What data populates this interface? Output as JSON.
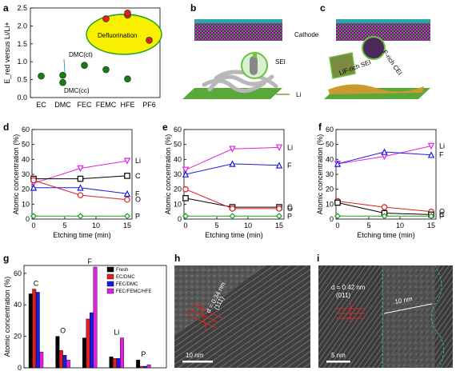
{
  "panel_labels": {
    "a": "a",
    "b": "b",
    "c": "c",
    "d": "d",
    "e": "e",
    "f": "f",
    "g": "g",
    "h": "h",
    "i": "i"
  },
  "chart_data": [
    {
      "id": "a",
      "type": "scatter",
      "ylabel": "E_red versus Li/Li+",
      "categories": [
        "EC",
        "DMC",
        "FEC",
        "FEMC",
        "HFE",
        "PF6"
      ],
      "ylim": [
        0,
        2.5
      ],
      "yticks": [
        "0.0",
        "0.5",
        "1.0",
        "1.5",
        "2.0",
        "2.5"
      ],
      "points": [
        {
          "x": "EC",
          "y": 0.6,
          "color": "#1a7a1a"
        },
        {
          "x": "DMC",
          "y": 0.62,
          "color": "#1a7a1a"
        },
        {
          "x": "DMC",
          "y": 0.42,
          "color": "#1a7a1a"
        },
        {
          "x": "FEC",
          "y": 0.9,
          "color": "#1a7a1a"
        },
        {
          "x": "FEMC",
          "y": 0.78,
          "color": "#1a7a1a"
        },
        {
          "x": "HFE",
          "y": 0.52,
          "color": "#1a7a1a"
        },
        {
          "x": "FEMC",
          "y": 2.2,
          "color": "#e0201c"
        },
        {
          "x": "HFE",
          "y": 2.3,
          "color": "#e0201c"
        },
        {
          "x": "HFE",
          "y": 2.36,
          "color": "#e0201c"
        },
        {
          "x": "PF6",
          "y": 1.6,
          "color": "#e0201c"
        }
      ],
      "annotations": [
        "DMC(ct)",
        "DMC(cc)",
        "Defluorination"
      ]
    },
    {
      "id": "d",
      "type": "line",
      "xlabel": "Etching time (min)",
      "ylabel": "Atomic concentration (%)",
      "x": [
        0,
        7.5,
        15
      ],
      "xticks": [
        "0",
        "5",
        "10",
        "15"
      ],
      "yticks": [
        "0",
        "10",
        "20",
        "30",
        "40",
        "50",
        "60"
      ],
      "ylim": [
        0,
        60
      ],
      "series": [
        {
          "name": "Li",
          "color": "#e020e0",
          "marker": "tri-down",
          "values": [
            24,
            34,
            39
          ]
        },
        {
          "name": "C",
          "color": "#000000",
          "marker": "square",
          "values": [
            27,
            27,
            29
          ]
        },
        {
          "name": "F",
          "color": "#1a1ae0",
          "marker": "triangle",
          "values": [
            21,
            21,
            17
          ]
        },
        {
          "name": "O",
          "color": "#e0201c",
          "marker": "circle",
          "values": [
            26,
            16,
            13
          ]
        },
        {
          "name": "P",
          "color": "#1aa01a",
          "marker": "diamond",
          "values": [
            2,
            2,
            2
          ]
        }
      ]
    },
    {
      "id": "e",
      "type": "line",
      "xlabel": "Etching time (min)",
      "ylabel": "Atomic concentration (%)",
      "x": [
        0,
        7.5,
        15
      ],
      "xticks": [
        "0",
        "5",
        "10",
        "15"
      ],
      "yticks": [
        "0",
        "10",
        "20",
        "30",
        "40",
        "50",
        "60"
      ],
      "ylim": [
        0,
        60
      ],
      "series": [
        {
          "name": "Li",
          "color": "#e020e0",
          "marker": "tri-down",
          "values": [
            33,
            47,
            48
          ]
        },
        {
          "name": "F",
          "color": "#1a1ae0",
          "marker": "triangle",
          "values": [
            30,
            37,
            36
          ]
        },
        {
          "name": "C",
          "color": "#000000",
          "marker": "square",
          "values": [
            14,
            8,
            8
          ]
        },
        {
          "name": "O",
          "color": "#e0201c",
          "marker": "circle",
          "values": [
            20,
            7,
            7
          ]
        },
        {
          "name": "P",
          "color": "#1aa01a",
          "marker": "diamond",
          "values": [
            2,
            2,
            2
          ]
        }
      ]
    },
    {
      "id": "f",
      "type": "line",
      "xlabel": "Etching time (min)",
      "ylabel": "Atomic concentration (%)",
      "x": [
        0,
        7.5,
        15
      ],
      "xticks": [
        "0",
        "5",
        "10",
        "15"
      ],
      "yticks": [
        "0",
        "10",
        "20",
        "30",
        "40",
        "50",
        "60"
      ],
      "ylim": [
        0,
        60
      ],
      "series": [
        {
          "name": "Li",
          "color": "#e020e0",
          "marker": "tri-down",
          "values": [
            37,
            42,
            49
          ]
        },
        {
          "name": "F",
          "color": "#1a1ae0",
          "marker": "triangle",
          "values": [
            37,
            45,
            43
          ]
        },
        {
          "name": "O",
          "color": "#e0201c",
          "marker": "circle",
          "values": [
            12,
            8,
            5
          ]
        },
        {
          "name": "C",
          "color": "#000000",
          "marker": "square",
          "values": [
            11,
            4,
            3
          ]
        },
        {
          "name": "P",
          "color": "#1aa01a",
          "marker": "diamond",
          "values": [
            2,
            2,
            2
          ]
        }
      ]
    },
    {
      "id": "g",
      "type": "bar",
      "ylabel": "Atomic concentration (%)",
      "categories": [
        "C",
        "O",
        "F",
        "Li",
        "P"
      ],
      "yticks": [
        "0",
        "20",
        "40",
        "60"
      ],
      "ylim": [
        0,
        65
      ],
      "legend_placement": "top-right",
      "series": [
        {
          "name": "Fresh",
          "color": "#000000",
          "values": [
            47,
            20,
            19,
            7,
            5
          ]
        },
        {
          "name": "EC/DMC",
          "color": "#e0201c",
          "values": [
            50,
            11,
            31,
            6,
            1
          ]
        },
        {
          "name": "FEC/DMC",
          "color": "#1a1ae0",
          "values": [
            48,
            8,
            35,
            6,
            1
          ]
        },
        {
          "name": "FEC/FEMC/HFE",
          "color": "#e020e0",
          "values": [
            10,
            5,
            64,
            19,
            2
          ]
        }
      ]
    }
  ],
  "schematic_b": {
    "sei_label": "SEI",
    "li_label": "Li"
  },
  "schematic_c": {
    "cathode_label": "Cathode",
    "cei_label": "F-rich CEI",
    "sei_label": "LiF-rich SEI"
  },
  "tem_h": {
    "spacing": "d = 0.34 nm",
    "plane": "(111)",
    "scalebar": "10 nm"
  },
  "tem_i": {
    "spacing": "d = 0.42 nm",
    "plane": "(011)",
    "width": "10 nm",
    "scalebar": "5 nm"
  }
}
